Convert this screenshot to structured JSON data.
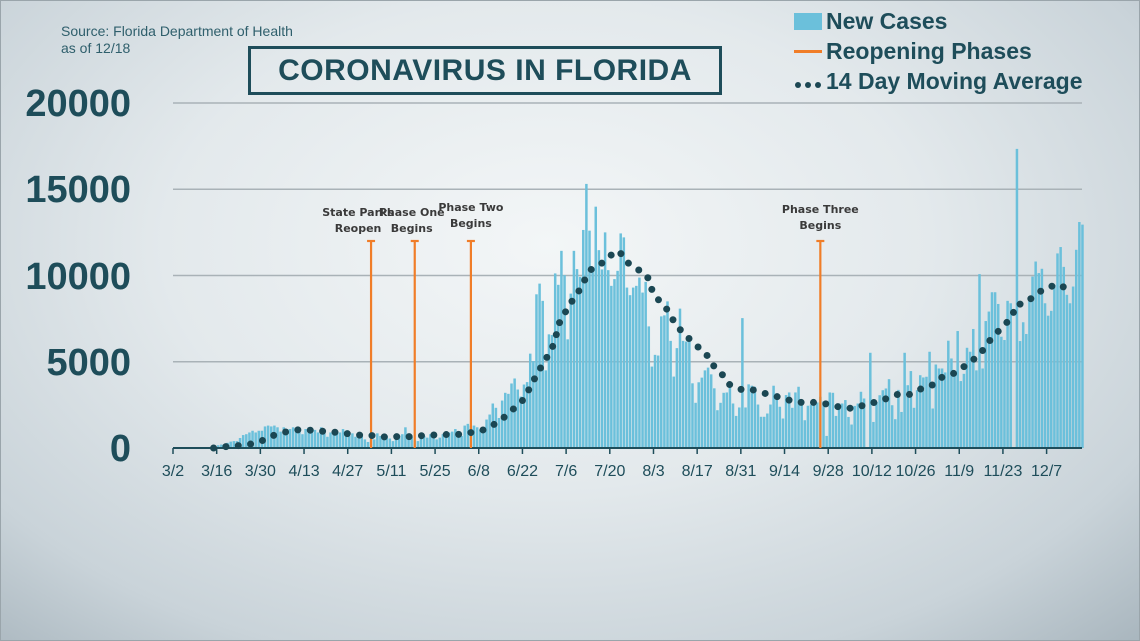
{
  "source": {
    "line1": "Source: Florida Department of Health",
    "line2": "as of 12/18"
  },
  "title": "CORONAVIRUS IN FLORIDA",
  "legend": [
    {
      "label": "New Cases",
      "kind": "bar",
      "color": "#6bc0db"
    },
    {
      "label": "Reopening Phases",
      "kind": "line",
      "color": "#f07d28"
    },
    {
      "label": "14 Day Moving Average",
      "kind": "dots",
      "color": "#1b4753"
    }
  ],
  "chart_data": {
    "type": "bar",
    "title": "CORONAVIRUS IN FLORIDA",
    "xlabel": "",
    "ylabel": "",
    "ylim": [
      0,
      20000
    ],
    "yticks": [
      "0",
      "5000",
      "10000",
      "15000",
      "20000"
    ],
    "grid": true,
    "legend_position": "top-right",
    "xticks": [
      "3/2",
      "3/16",
      "3/30",
      "4/13",
      "4/27",
      "5/11",
      "5/25",
      "6/8",
      "6/22",
      "7/6",
      "7/20",
      "8/3",
      "8/17",
      "8/31",
      "9/14",
      "9/28",
      "10/12",
      "10/26",
      "11/9",
      "11/23",
      "12/7"
    ],
    "series": [
      {
        "name": "New Cases",
        "type": "bar",
        "color": "#6bc0db",
        "daily_by_month": [
          {
            "month": 3,
            "first_day": 2,
            "values": [
              0,
              0,
              2,
              3,
              5,
              8,
              10,
              14,
              20,
              28,
              35,
              50,
              100,
              60,
              160,
              200,
              230,
              300,
              370,
              400,
              400,
              580,
              750,
              800,
              900,
              1000,
              900,
              1000,
              1000,
              1250
            ]
          },
          {
            "month": 4,
            "first_day": 1,
            "values": [
              1300,
              1250,
              1300,
              1200,
              950,
              1200,
              1100,
              1100,
              1200,
              1150,
              1000,
              800,
              1100,
              1200,
              1100,
              1050,
              900,
              1200,
              850,
              650,
              900,
              1000,
              850,
              900,
              1100,
              750,
              700,
              850,
              650,
              750
            ]
          },
          {
            "month": 5,
            "first_day": 1,
            "values": [
              800,
              500,
              350,
              700,
              500,
              850,
              700,
              650,
              700,
              550,
              400,
              500,
              700,
              800,
              1200,
              550,
              650,
              450,
              400,
              800,
              700,
              600,
              800,
              800,
              500,
              600,
              800,
              600,
              900,
              950,
              1100
            ]
          },
          {
            "month": 6,
            "first_day": 1,
            "values": [
              750,
              700,
              1300,
              1400,
              1300,
              1300,
              1200,
              1070,
              1160,
              1650,
              1940,
              2580,
              2330,
              1740,
              2750,
              3200,
              3140,
              3740,
              4030,
              3390,
              2980,
              3680,
              3820,
              5470,
              5040,
              8910,
              9530,
              8530,
              4500,
              6590
            ]
          },
          {
            "month": 7,
            "first_day": 1,
            "values": [
              6550,
              10120,
              9460,
              11430,
              10020,
              6300,
              8950,
              11430,
              10370,
              9920,
              12640,
              15310,
              12600,
              10270,
              13990,
              11470,
              10350,
              12500,
              10310,
              9400,
              9790,
              10270,
              12440,
              12210,
              9300,
              8860,
              9300,
              9400,
              9880,
              9010,
              9630
            ]
          },
          {
            "month": 8,
            "first_day": 1,
            "values": [
              7050,
              4720,
              5400,
              5360,
              7630,
              7690,
              8500,
              6210,
              4140,
              5790,
              8080,
              6210,
              6170,
              6210,
              3750,
              2620,
              3810,
              4080,
              4500,
              4660,
              4270,
              3460,
              2190,
              2620,
              3200,
              3220,
              3500,
              2580,
              1860,
              2350,
              7530
            ]
          },
          {
            "month": 9,
            "first_day": 1,
            "values": [
              2350,
              3690,
              3610,
              3550,
              2520,
              1810,
              1810,
              2000,
              2520,
              3610,
              3170,
              2390,
              1710,
              3070,
              3220,
              2330,
              3220,
              3550,
              2490,
              1610,
              2450,
              2520,
              2490,
              2640,
              2970,
              2700,
              700,
              3220,
              3200,
              1860
            ]
          },
          {
            "month": 10,
            "first_day": 1,
            "values": [
              2580,
              2580,
              2780,
              1800,
              1360,
              2440,
              2580,
              3260,
              2870,
              0,
              5520,
              1510,
              2670,
              3060,
              3350,
              3450,
              3990,
              2480,
              1670,
              3370,
              2090,
              5520,
              3640,
              4460,
              2330,
              3350,
              4220,
              4090,
              4130,
              5580,
              2290
            ]
          },
          {
            "month": 11,
            "first_day": 1,
            "values": [
              4840,
              4610,
              4610,
              4380,
              6220,
              5190,
              4460,
              6780,
              3880,
              4300,
              5810,
              5580,
              6900,
              4500,
              10080,
              4610,
              7360,
              7910,
              9030,
              9030,
              8350,
              6450,
              6260,
              8530,
              8390,
              0,
              17340,
              6200,
              7290,
              6610
            ]
          },
          {
            "month": 12,
            "first_day": 1,
            "values": [
              8800,
              9940,
              10810,
              10140,
              10390,
              8390,
              7670,
              7950,
              9460,
              11280,
              11650,
              10500,
              8880,
              8390,
              9360,
              11490,
              13100,
              12950
            ]
          }
        ]
      },
      {
        "name": "14 Day Moving Average",
        "type": "line",
        "style": "dotted",
        "color": "#1b4753",
        "points": [
          [
            "3/15",
            0
          ],
          [
            "3/19",
            80
          ],
          [
            "3/23",
            140
          ],
          [
            "3/27",
            230
          ],
          [
            "3/31",
            450
          ],
          [
            "4/3",
            720
          ],
          [
            "4/7",
            930
          ],
          [
            "4/11",
            1050
          ],
          [
            "4/15",
            1030
          ],
          [
            "4/19",
            970
          ],
          [
            "4/23",
            910
          ],
          [
            "4/27",
            830
          ],
          [
            "5/1",
            740
          ],
          [
            "5/5",
            720
          ],
          [
            "5/9",
            640
          ],
          [
            "5/13",
            660
          ],
          [
            "5/17",
            660
          ],
          [
            "5/21",
            720
          ],
          [
            "5/25",
            760
          ],
          [
            "5/29",
            780
          ],
          [
            "6/2",
            790
          ],
          [
            "6/6",
            910
          ],
          [
            "6/10",
            1070
          ],
          [
            "6/13",
            1380
          ],
          [
            "6/16",
            1760
          ],
          [
            "6/19",
            2250
          ],
          [
            "6/22",
            2750
          ],
          [
            "6/24",
            3370
          ],
          [
            "6/26",
            4050
          ],
          [
            "6/28",
            4710
          ],
          [
            "6/30",
            5310
          ],
          [
            "7/2",
            5990
          ],
          [
            "7/3",
            6670
          ],
          [
            "7/4",
            7340
          ],
          [
            "7/6",
            7950
          ],
          [
            "7/8",
            8550
          ],
          [
            "7/10",
            9070
          ],
          [
            "7/12",
            9750
          ],
          [
            "7/14",
            10350
          ],
          [
            "7/17",
            10640
          ],
          [
            "7/20",
            11140
          ],
          [
            "7/23",
            11430
          ],
          [
            "7/25",
            10830
          ],
          [
            "7/28",
            10470
          ],
          [
            "8/1",
            10000
          ],
          [
            "8/2",
            9340
          ],
          [
            "8/4",
            8710
          ],
          [
            "8/7",
            8120
          ],
          [
            "8/9",
            7500
          ],
          [
            "8/11",
            6970
          ],
          [
            "8/14",
            6410
          ],
          [
            "8/17",
            5900
          ],
          [
            "8/20",
            5420
          ],
          [
            "8/22",
            4820
          ],
          [
            "8/25",
            4270
          ],
          [
            "8/27",
            3710
          ],
          [
            "8/31",
            3400
          ],
          [
            "9/3",
            3420
          ],
          [
            "9/7",
            3200
          ],
          [
            "9/11",
            3010
          ],
          [
            "9/14",
            2850
          ],
          [
            "9/18",
            2640
          ],
          [
            "9/22",
            2660
          ],
          [
            "9/26",
            2600
          ],
          [
            "9/29",
            2490
          ],
          [
            "10/3",
            2310
          ],
          [
            "10/7",
            2310
          ],
          [
            "10/10",
            2540
          ],
          [
            "10/14",
            2690
          ],
          [
            "10/18",
            2950
          ],
          [
            "10/21",
            3160
          ],
          [
            "10/24",
            3100
          ],
          [
            "10/28",
            3450
          ],
          [
            "10/31",
            3600
          ],
          [
            "11/3",
            4070
          ],
          [
            "11/7",
            4300
          ],
          [
            "11/10",
            4650
          ],
          [
            "11/13",
            5040
          ],
          [
            "11/16",
            5520
          ],
          [
            "11/18",
            6070
          ],
          [
            "11/21",
            6670
          ],
          [
            "11/23",
            7050
          ],
          [
            "11/26",
            7600
          ],
          [
            "11/27",
            8290
          ],
          [
            "11/30",
            8390
          ],
          [
            "12/3",
            8800
          ],
          [
            "12/6",
            9210
          ],
          [
            "12/10",
            9460
          ],
          [
            "12/12",
            9300
          ],
          [
            "12/15",
            9670
          ]
        ]
      }
    ],
    "annotations": [
      {
        "date": "5/4",
        "label_line1": "State Parks",
        "label_line2": "Reopen",
        "height": 12000,
        "color": "#f07d28"
      },
      {
        "date": "5/18",
        "label_line1": "Phase One",
        "label_line2": "Begins",
        "height": 12000,
        "color": "#f07d28"
      },
      {
        "date": "6/5",
        "label_line1": "Phase Two",
        "label_line2": "Begins",
        "height": 12000,
        "color": "#f07d28"
      },
      {
        "date": "9/25",
        "label_line1": "Phase Three",
        "label_line2": "Begins",
        "height": 12000,
        "color": "#f07d28"
      }
    ]
  }
}
